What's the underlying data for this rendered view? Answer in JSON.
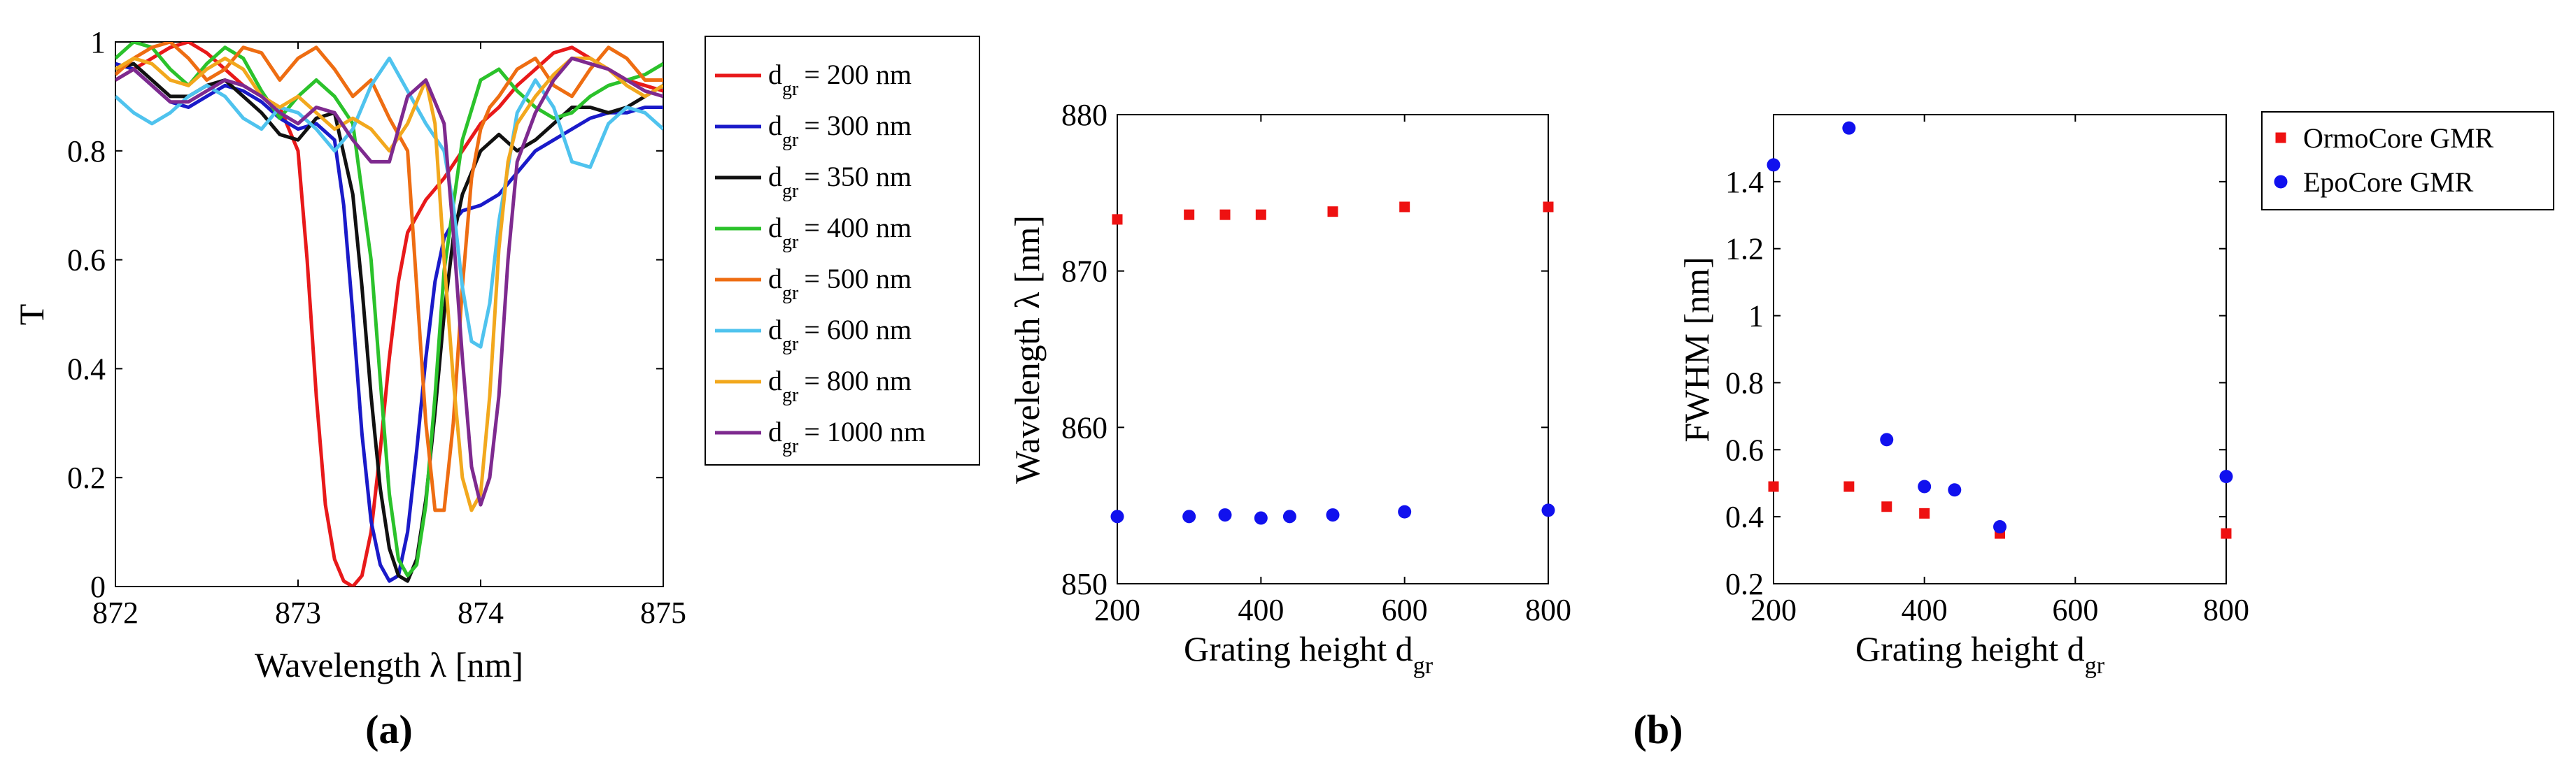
{
  "colors": {
    "red": "#e8191a",
    "blue": "#1a1ac9",
    "black": "#111111",
    "green": "#2bc22b",
    "orange": "#ee6d12",
    "lightblue": "#4fc3ee",
    "gold": "#f2a81d",
    "purple": "#7e2a8f",
    "marker_red": "#ee1111",
    "marker_blue": "#1111ee"
  },
  "panel_labels": {
    "a": "(a)",
    "b": "(b)"
  },
  "chart_data": [
    {
      "id": "transmission-spectra",
      "type": "line",
      "title": "",
      "xlabel": "Wavelength λ [nm]",
      "ylabel": "T",
      "xlim": [
        872,
        875
      ],
      "ylim": [
        0,
        1
      ],
      "xticks": [
        "872",
        "873",
        "874",
        "875"
      ],
      "yticks": [
        "0",
        "0.2",
        "0.4",
        "0.6",
        "0.8",
        "1"
      ],
      "legend_position": "outside-right",
      "series": [
        {
          "name": "= 200 nm",
          "symbol": "d",
          "subscript": "gr",
          "color": "red",
          "x": [
            872.0,
            872.1,
            872.2,
            872.3,
            872.4,
            872.5,
            872.6,
            872.7,
            872.8,
            872.9,
            873.0,
            873.05,
            873.1,
            873.15,
            873.2,
            873.25,
            873.3,
            873.35,
            873.4,
            873.45,
            873.5,
            873.55,
            873.6,
            873.7,
            873.8,
            873.9,
            874.0,
            874.1,
            874.2,
            874.3,
            874.4,
            874.5,
            874.6,
            874.7,
            874.8,
            874.9,
            875.0
          ],
          "y": [
            0.93,
            0.95,
            0.97,
            0.99,
            1.0,
            0.98,
            0.95,
            0.92,
            0.9,
            0.88,
            0.8,
            0.6,
            0.35,
            0.15,
            0.05,
            0.01,
            0.0,
            0.02,
            0.1,
            0.25,
            0.42,
            0.56,
            0.65,
            0.71,
            0.75,
            0.8,
            0.85,
            0.88,
            0.92,
            0.95,
            0.98,
            0.99,
            0.97,
            0.95,
            0.93,
            0.92,
            0.91
          ]
        },
        {
          "name": "= 300 nm",
          "symbol": "d",
          "subscript": "gr",
          "color": "blue",
          "x": [
            872.0,
            872.1,
            872.2,
            872.3,
            872.4,
            872.5,
            872.6,
            872.7,
            872.8,
            872.9,
            873.0,
            873.1,
            873.2,
            873.25,
            873.3,
            873.35,
            873.4,
            873.45,
            873.5,
            873.55,
            873.6,
            873.65,
            873.7,
            873.75,
            873.8,
            873.85,
            873.9,
            874.0,
            874.1,
            874.2,
            874.3,
            874.4,
            874.5,
            874.6,
            874.7,
            874.8,
            874.9,
            875.0
          ],
          "y": [
            0.96,
            0.95,
            0.92,
            0.89,
            0.88,
            0.9,
            0.92,
            0.91,
            0.89,
            0.86,
            0.84,
            0.85,
            0.82,
            0.7,
            0.5,
            0.28,
            0.12,
            0.04,
            0.01,
            0.02,
            0.1,
            0.25,
            0.42,
            0.56,
            0.64,
            0.67,
            0.69,
            0.7,
            0.72,
            0.76,
            0.8,
            0.82,
            0.84,
            0.86,
            0.87,
            0.87,
            0.88,
            0.88
          ]
        },
        {
          "name": "= 350 nm",
          "symbol": "d",
          "subscript": "gr",
          "color": "black",
          "x": [
            872.0,
            872.1,
            872.2,
            872.3,
            872.4,
            872.5,
            872.6,
            872.7,
            872.8,
            872.9,
            873.0,
            873.1,
            873.2,
            873.3,
            873.35,
            873.4,
            873.45,
            873.5,
            873.55,
            873.6,
            873.65,
            873.7,
            873.75,
            873.8,
            873.85,
            873.9,
            874.0,
            874.1,
            874.2,
            874.3,
            874.4,
            874.5,
            874.6,
            874.7,
            874.8,
            874.9,
            875.0
          ],
          "y": [
            0.95,
            0.96,
            0.93,
            0.9,
            0.9,
            0.92,
            0.93,
            0.9,
            0.87,
            0.83,
            0.82,
            0.86,
            0.87,
            0.72,
            0.55,
            0.35,
            0.18,
            0.07,
            0.02,
            0.01,
            0.05,
            0.16,
            0.32,
            0.5,
            0.64,
            0.72,
            0.8,
            0.83,
            0.8,
            0.82,
            0.85,
            0.88,
            0.88,
            0.87,
            0.88,
            0.9,
            0.92
          ]
        },
        {
          "name": "= 400 nm",
          "symbol": "d",
          "subscript": "gr",
          "color": "green",
          "x": [
            872.0,
            872.1,
            872.2,
            872.3,
            872.4,
            872.5,
            872.6,
            872.7,
            872.8,
            872.9,
            873.0,
            873.1,
            873.2,
            873.3,
            873.4,
            873.45,
            873.5,
            873.55,
            873.6,
            873.65,
            873.7,
            873.75,
            873.8,
            873.9,
            874.0,
            874.1,
            874.2,
            874.3,
            874.4,
            874.5,
            874.6,
            874.7,
            874.8,
            874.9,
            875.0
          ],
          "y": [
            0.97,
            1.0,
            0.99,
            0.95,
            0.92,
            0.96,
            0.99,
            0.97,
            0.91,
            0.86,
            0.9,
            0.93,
            0.9,
            0.85,
            0.6,
            0.38,
            0.17,
            0.05,
            0.02,
            0.04,
            0.15,
            0.35,
            0.58,
            0.82,
            0.93,
            0.95,
            0.91,
            0.88,
            0.86,
            0.87,
            0.9,
            0.92,
            0.93,
            0.94,
            0.96
          ]
        },
        {
          "name": "= 500 nm",
          "symbol": "d",
          "subscript": "gr",
          "color": "orange",
          "x": [
            872.0,
            872.1,
            872.2,
            872.3,
            872.4,
            872.5,
            872.6,
            872.7,
            872.8,
            872.9,
            873.0,
            873.1,
            873.2,
            873.3,
            873.4,
            873.5,
            873.6,
            873.65,
            873.7,
            873.75,
            873.8,
            873.85,
            873.9,
            873.95,
            874.0,
            874.05,
            874.1,
            874.2,
            874.3,
            874.4,
            874.5,
            874.6,
            874.7,
            874.8,
            874.9,
            875.0
          ],
          "y": [
            0.94,
            0.97,
            0.99,
            1.0,
            0.97,
            0.93,
            0.95,
            0.99,
            0.98,
            0.93,
            0.97,
            0.99,
            0.95,
            0.9,
            0.93,
            0.86,
            0.8,
            0.55,
            0.3,
            0.14,
            0.14,
            0.3,
            0.55,
            0.75,
            0.84,
            0.88,
            0.9,
            0.95,
            0.97,
            0.92,
            0.9,
            0.95,
            0.99,
            0.97,
            0.93,
            0.93
          ]
        },
        {
          "name": "= 600 nm",
          "symbol": "d",
          "subscript": "gr",
          "color": "lightblue",
          "x": [
            872.0,
            872.1,
            872.2,
            872.3,
            872.4,
            872.5,
            872.6,
            872.7,
            872.8,
            872.9,
            873.0,
            873.1,
            873.2,
            873.3,
            873.4,
            873.5,
            873.6,
            873.7,
            873.8,
            873.85,
            873.9,
            873.95,
            874.0,
            874.05,
            874.1,
            874.2,
            874.3,
            874.4,
            874.5,
            874.6,
            874.7,
            874.8,
            874.9,
            875.0
          ],
          "y": [
            0.9,
            0.87,
            0.85,
            0.87,
            0.9,
            0.92,
            0.9,
            0.86,
            0.84,
            0.88,
            0.87,
            0.84,
            0.8,
            0.84,
            0.92,
            0.97,
            0.91,
            0.85,
            0.8,
            0.7,
            0.55,
            0.45,
            0.44,
            0.52,
            0.67,
            0.87,
            0.93,
            0.88,
            0.78,
            0.77,
            0.85,
            0.88,
            0.87,
            0.84
          ]
        },
        {
          "name": "= 800 nm",
          "symbol": "d",
          "subscript": "gr",
          "color": "gold",
          "x": [
            872.0,
            872.1,
            872.2,
            872.3,
            872.4,
            872.5,
            872.6,
            872.7,
            872.8,
            872.9,
            873.0,
            873.1,
            873.2,
            873.3,
            873.4,
            873.5,
            873.6,
            873.7,
            873.75,
            873.8,
            873.85,
            873.9,
            873.95,
            874.0,
            874.05,
            874.1,
            874.15,
            874.2,
            874.3,
            874.4,
            874.5,
            874.6,
            874.7,
            874.8,
            874.9,
            875.0
          ],
          "y": [
            0.95,
            0.97,
            0.96,
            0.93,
            0.92,
            0.95,
            0.97,
            0.95,
            0.9,
            0.88,
            0.9,
            0.87,
            0.84,
            0.86,
            0.84,
            0.8,
            0.85,
            0.93,
            0.85,
            0.6,
            0.38,
            0.2,
            0.14,
            0.17,
            0.35,
            0.62,
            0.78,
            0.85,
            0.9,
            0.94,
            0.97,
            0.97,
            0.95,
            0.92,
            0.9,
            0.92
          ]
        },
        {
          "name": "= 1000 nm",
          "symbol": "d",
          "subscript": "gr",
          "color": "purple",
          "x": [
            872.0,
            872.1,
            872.2,
            872.3,
            872.4,
            872.5,
            872.6,
            872.7,
            872.8,
            872.9,
            873.0,
            873.1,
            873.2,
            873.3,
            873.4,
            873.5,
            873.6,
            873.7,
            873.8,
            873.85,
            873.9,
            873.95,
            874.0,
            874.05,
            874.1,
            874.15,
            874.2,
            874.3,
            874.4,
            874.5,
            874.6,
            874.7,
            874.8,
            874.9,
            875.0
          ],
          "y": [
            0.93,
            0.95,
            0.92,
            0.89,
            0.89,
            0.91,
            0.93,
            0.92,
            0.9,
            0.87,
            0.85,
            0.88,
            0.87,
            0.82,
            0.78,
            0.78,
            0.9,
            0.93,
            0.85,
            0.65,
            0.42,
            0.22,
            0.15,
            0.2,
            0.35,
            0.6,
            0.78,
            0.87,
            0.93,
            0.97,
            0.96,
            0.95,
            0.93,
            0.91,
            0.9
          ]
        }
      ]
    },
    {
      "id": "resonance-wavelength",
      "type": "scatter",
      "title": "",
      "xlabel": "Grating height d",
      "xlabel_subscript": "gr",
      "ylabel": "Wavelength λ [nm]",
      "xlim": [
        200,
        800
      ],
      "ylim": [
        850,
        880
      ],
      "xticks": [
        "200",
        "400",
        "600",
        "800"
      ],
      "yticks": [
        "850",
        "860",
        "870",
        "880"
      ],
      "series": [
        {
          "name": "OrmoCore GMR",
          "marker": "square",
          "color": "marker_red",
          "x": [
            200,
            300,
            350,
            400,
            500,
            600,
            800
          ],
          "y": [
            873.3,
            873.6,
            873.6,
            873.6,
            873.8,
            874.1,
            874.1
          ]
        },
        {
          "name": "EpoCore GMR",
          "marker": "circle",
          "color": "marker_blue",
          "x": [
            200,
            300,
            350,
            400,
            440,
            500,
            600,
            800
          ],
          "y": [
            854.3,
            854.3,
            854.4,
            854.2,
            854.3,
            854.4,
            854.6,
            854.7
          ]
        }
      ]
    },
    {
      "id": "fwhm",
      "type": "scatter",
      "title": "",
      "xlabel": "Grating height d",
      "xlabel_subscript": "gr",
      "ylabel": "FWHM [nm]",
      "xlim": [
        200,
        800
      ],
      "ylim": [
        0.2,
        1.6
      ],
      "xticks": [
        "200",
        "400",
        "600",
        "800"
      ],
      "yticks": [
        "0.2",
        "0.4",
        "0.6",
        "0.8",
        "1",
        "1.2",
        "1.4"
      ],
      "legend_position": "outside-top-right",
      "series": [
        {
          "name": "OrmoCore GMR",
          "marker": "square",
          "color": "marker_red",
          "x": [
            200,
            300,
            350,
            400,
            500,
            800
          ],
          "y": [
            0.49,
            0.49,
            0.43,
            0.41,
            0.35,
            0.35
          ]
        },
        {
          "name": "EpoCore GMR",
          "marker": "circle",
          "color": "marker_blue",
          "x": [
            200,
            300,
            350,
            400,
            440,
            500,
            800
          ],
          "y": [
            1.45,
            1.56,
            0.63,
            0.49,
            0.48,
            0.37,
            0.52
          ]
        }
      ]
    }
  ]
}
